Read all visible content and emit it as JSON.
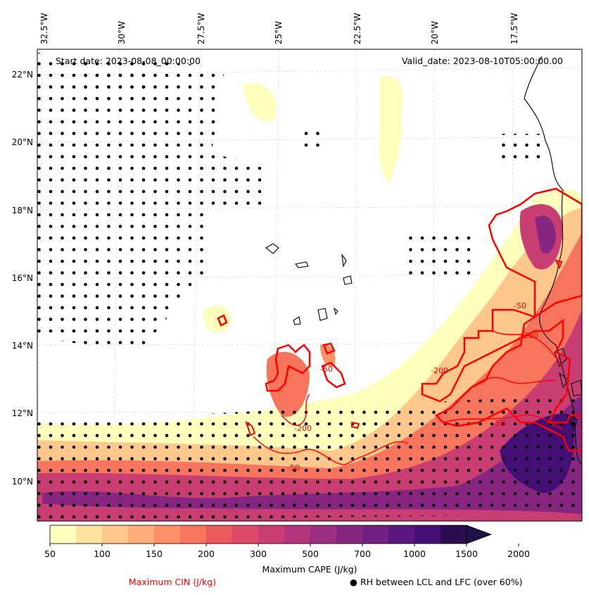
{
  "map": {
    "start_date": "Start date: 2023-08-08_00:00:00",
    "valid_date": "Valid_date: 2023-08-10T05:00:00.00",
    "lon_labels": [
      "32.5°W",
      "30°W",
      "27.5°W",
      "25°W",
      "22.5°W",
      "20°W",
      "17.5°W"
    ],
    "lat_labels": [
      "22°N",
      "20°N",
      "18°N",
      "16°N",
      "14°N",
      "12°N",
      "10°N"
    ],
    "cin_contour_labels": [
      "-50",
      "-250",
      "-200",
      "-50",
      "-50",
      "-50",
      "-200"
    ]
  },
  "colorbar": {
    "label": "Maximum CAPE (J/kg)",
    "ticks": [
      "50",
      "100",
      "150",
      "200",
      "300",
      "500",
      "700",
      "1000",
      "1500",
      "2000"
    ],
    "colors": [
      "#fefebd",
      "#fee2a0",
      "#fec78c",
      "#feac7a",
      "#fb8f68",
      "#f6755c",
      "#ec5b5c",
      "#dc4a68",
      "#c83e73",
      "#b2357b",
      "#9c2e7f",
      "#862681",
      "#711f81",
      "#5b167e",
      "#430f75",
      "#2a0c50",
      "#1d1146"
    ]
  },
  "legend": {
    "cin_label": "Maximum CIN (J/kg)",
    "rh_marker": "●",
    "rh_label": "RH between LCL and LFC (over 60%)",
    "cin_color": "#ff0000"
  }
}
